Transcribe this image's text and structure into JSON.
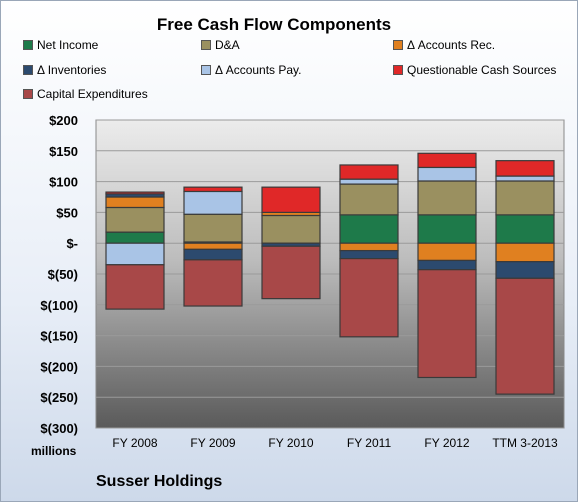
{
  "chart_data": {
    "type": "bar",
    "stacked": true,
    "title": "Free Cash Flow Components",
    "unit_label": "millions",
    "categories": [
      "FY 2008",
      "FY 2009",
      "FY 2010",
      "FY 2011",
      "FY 2012",
      "TTM 3-2013"
    ],
    "ylim": [
      -300,
      200
    ],
    "yticks": [
      200,
      150,
      100,
      50,
      0,
      -50,
      -100,
      -150,
      -200,
      -250,
      -300
    ],
    "ytick_labels": [
      "$200",
      "$150",
      "$100",
      "$50",
      "$-",
      "$(50)",
      "$(100)",
      "$(150)",
      "$(200)",
      "$(250)",
      "$(300)"
    ],
    "grid": true,
    "legend_position": "top",
    "series": [
      {
        "name": "Net Income",
        "color": "#1e7a4a",
        "values": [
          18,
          2,
          0,
          46,
          46,
          46
        ]
      },
      {
        "name": "D&A",
        "color": "#9a9060",
        "values": [
          40,
          45,
          45,
          50,
          55,
          55
        ]
      },
      {
        "name": "Δ Accounts Rec.",
        "color": "#e08020",
        "values": [
          17,
          -10,
          5,
          -12,
          -28,
          -30
        ]
      },
      {
        "name": "Δ Inventories",
        "color": "#2c4a6e",
        "values": [
          5,
          -17,
          -5,
          -13,
          -15,
          -27
        ]
      },
      {
        "name": "Δ Accounts Pay.",
        "color": "#a9c4e6",
        "values": [
          -35,
          37,
          0,
          8,
          22,
          8
        ]
      },
      {
        "name": "Questionable Cash Sources",
        "color": "#e02828",
        "values": [
          3,
          7,
          41,
          23,
          23,
          25
        ]
      },
      {
        "name": "Capital Expenditures",
        "color": "#a84848",
        "values": [
          -72,
          -75,
          -85,
          -127,
          -175,
          -188
        ]
      }
    ]
  },
  "footer": "Susser Holdings"
}
